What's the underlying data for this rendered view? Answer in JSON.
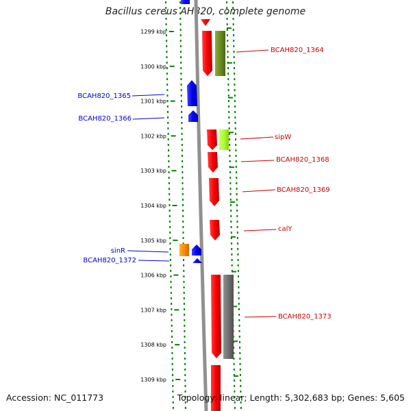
{
  "title": "Bacillus cereus AH820, complete genome",
  "footer": {
    "accession": "Accession: NC_011773",
    "summary": "Topology: linear; Length: 5,302,683 bp; Genes: 5,605"
  },
  "scale": {
    "unit": "kbp",
    "ticks": [
      1299,
      1300,
      1301,
      1302,
      1303,
      1304,
      1305,
      1306,
      1307,
      1308,
      1309
    ]
  },
  "colors": {
    "plus_strand": "#ff0000",
    "minus_strand": "#0000ff",
    "olive_feature": "#6b8e23",
    "lime_feature": "#adff2f",
    "orange_feature": "#ff8c00",
    "gray_feature": "#707070",
    "tick_green": "#008000",
    "axis_gray": "#909090"
  },
  "labels": [
    {
      "name": "BCAH820_1364",
      "side": "right",
      "color": "#cc0000"
    },
    {
      "name": "BCAH820_1365",
      "side": "left",
      "color": "#0000cc"
    },
    {
      "name": "BCAH820_1366",
      "side": "left",
      "color": "#0000cc"
    },
    {
      "name": "sipW",
      "side": "right",
      "color": "#cc0000"
    },
    {
      "name": "BCAH820_1368",
      "side": "right",
      "color": "#cc0000"
    },
    {
      "name": "BCAH820_1369",
      "side": "right",
      "color": "#cc0000"
    },
    {
      "name": "calY",
      "side": "right",
      "color": "#cc0000"
    },
    {
      "name": "sinR",
      "side": "left",
      "color": "#0000cc"
    },
    {
      "name": "BCAH820_1372",
      "side": "left",
      "color": "#0000cc"
    },
    {
      "name": "BCAH820_1373",
      "side": "right",
      "color": "#cc0000"
    }
  ]
}
